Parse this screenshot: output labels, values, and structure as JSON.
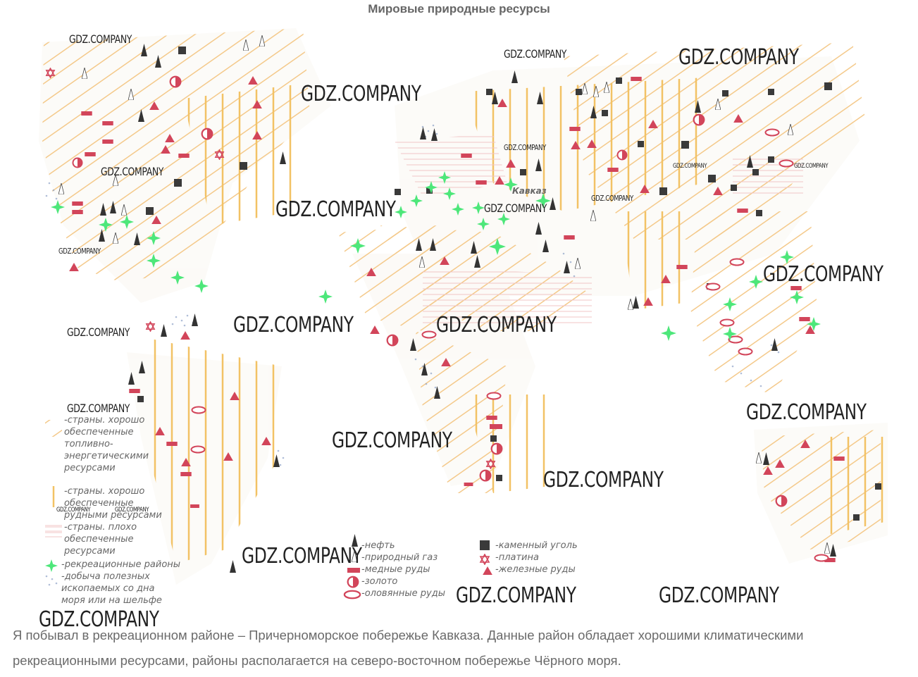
{
  "title": "Мировые природные ресурсы",
  "region_label": "Кавказ",
  "watermark": "GDZ.COMPANY",
  "legend": {
    "fuel_rich": "-страны. хорошо обеспеченные топливно-энергетическими ресурсами",
    "ore_rich": "-страны. хорошо обеспеченные рудными ресурсами",
    "poor": "-страны. плохо обеспеченные ресурсами",
    "recreation": "-рекреационные районы",
    "seabed": "-добыча полезных ископаемых со дна моря или на шельфе",
    "oil": "-нефть",
    "gas": "-природный газ",
    "copper": "-медные руды",
    "gold": "-золото",
    "tin": "-оловянные руды",
    "coal": "-каменный уголь",
    "platinum": "-платина",
    "iron": "-железные руды"
  },
  "colors": {
    "fuel_hatch": "#f4c98a",
    "ore_hatch": "#f2c265",
    "poor_hatch": "#f1c6c6",
    "oil": "#333333",
    "metal": "#d2455a",
    "coal": "#3a3a3a",
    "recreation": "#4de77a",
    "seabed_dots": "#8fa3c8"
  },
  "caption": {
    "line1": "Я побывал в рекреационном районе – Причерноморское побережье Кавказа. Данные район обладает хорошими климатическими",
    "line2": "рекреационными ресурсами, районы располагается на северо-восточном побережье Чёрного моря."
  }
}
